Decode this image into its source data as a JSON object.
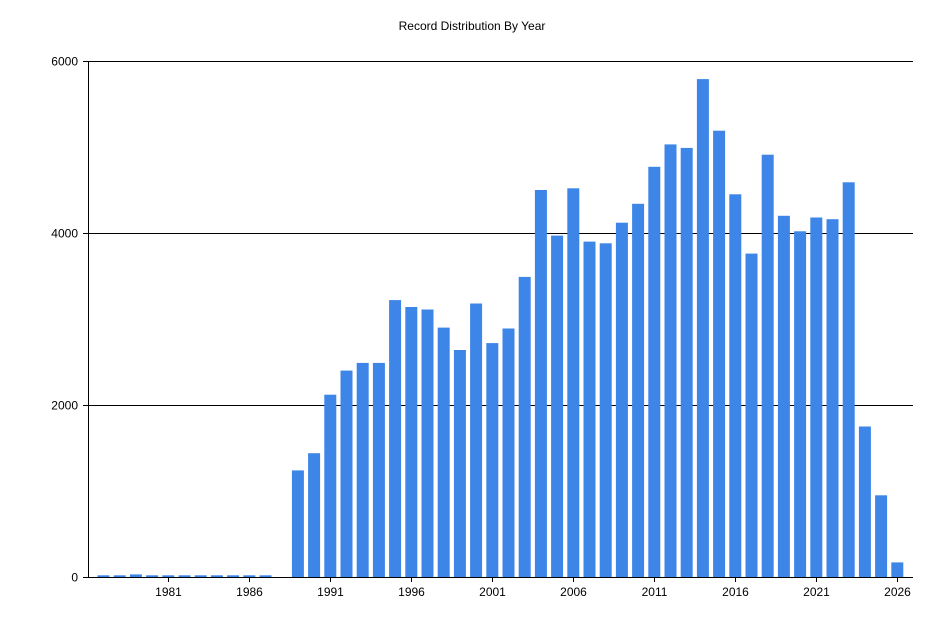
{
  "chart_data": {
    "type": "bar",
    "title": "Record Distribution By Year",
    "xlabel": "",
    "ylabel": "",
    "x": [
      1977,
      1978,
      1979,
      1980,
      1981,
      1982,
      1983,
      1984,
      1985,
      1986,
      1987,
      1988,
      1989,
      1990,
      1991,
      1992,
      1993,
      1994,
      1995,
      1996,
      1997,
      1998,
      1999,
      2000,
      2001,
      2002,
      2003,
      2004,
      2005,
      2006,
      2007,
      2008,
      2009,
      2010,
      2011,
      2012,
      2013,
      2014,
      2015,
      2016,
      2017,
      2018,
      2019,
      2020,
      2021,
      2022,
      2023,
      2024,
      2025,
      2026
    ],
    "values": [
      20,
      20,
      30,
      20,
      20,
      20,
      20,
      20,
      20,
      20,
      20,
      0,
      1240,
      1440,
      2120,
      2400,
      2490,
      2490,
      3220,
      3140,
      3110,
      2900,
      2640,
      3180,
      2720,
      2890,
      3490,
      4500,
      3970,
      4520,
      3900,
      3880,
      4120,
      4340,
      4770,
      5030,
      4990,
      5790,
      5190,
      4450,
      3760,
      4910,
      4200,
      4020,
      4180,
      4160,
      4590,
      1750,
      950,
      170
    ],
    "ylim": [
      0,
      6000
    ],
    "y_ticks": [
      0,
      2000,
      4000,
      6000
    ],
    "x_ticks": [
      1981,
      1986,
      1991,
      1996,
      2001,
      2006,
      2011,
      2016,
      2021,
      2026
    ],
    "bar_color": "#3d86e8",
    "grid": "horizontal",
    "legend": "none"
  }
}
